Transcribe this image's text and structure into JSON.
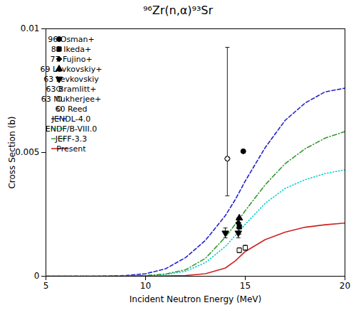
{
  "chart_data": {
    "type": "scatter",
    "title": "⁹⁶Zr(n,α)⁹³Sr",
    "xlabel": "Incident Neutron Energy (MeV)",
    "ylabel": "Cross Section (b)",
    "xlim": [
      5,
      20
    ],
    "ylim": [
      0,
      0.01
    ],
    "xticks": [
      5,
      10,
      15,
      20
    ],
    "yticks": [
      0,
      0.005,
      0.01
    ],
    "grid": false,
    "legend": "upper left",
    "series": [
      {
        "name": "96 Osman+",
        "type": "scatter",
        "marker": "circle",
        "color": "black",
        "x": [
          14.9
        ],
        "values": [
          0.00505
        ],
        "yerr_lo": [
          0.0
        ],
        "yerr_hi": [
          0.0
        ]
      },
      {
        "name": "88 Ikeda+",
        "type": "scatter",
        "marker": "square",
        "color": "black",
        "x": [
          14.7
        ],
        "values": [
          0.002
        ],
        "yerr_lo": [
          0.0003
        ],
        "yerr_hi": [
          0.0003
        ]
      },
      {
        "name": "77 Fujino+",
        "type": "scatter",
        "marker": "diamond",
        "color": "black",
        "x": [
          14.65
        ],
        "values": [
          0.00215
        ],
        "yerr_lo": [
          0.0002
        ],
        "yerr_hi": [
          0.0002
        ]
      },
      {
        "name": "69 Levkovskiy+",
        "type": "scatter",
        "marker": "triangle-up",
        "color": "black",
        "x": [
          14.7
        ],
        "values": [
          0.00235
        ],
        "yerr_lo": [
          0.0
        ],
        "yerr_hi": [
          0.0
        ]
      },
      {
        "name": "63 Levkovskiy",
        "type": "scatter",
        "marker": "triangle-down",
        "color": "black",
        "x": [
          14.0,
          14.65
        ],
        "values": [
          0.00175,
          0.00175
        ],
        "yerr_lo": [
          0.0002,
          0.0002
        ],
        "yerr_hi": [
          0.0002,
          0.0002
        ]
      },
      {
        "name": "63 Bramlitt+",
        "type": "scatter",
        "marker": "circle",
        "color": "white",
        "x": [
          14.1
        ],
        "values": [
          0.00475
        ],
        "yerr_lo": [
          0.0015
        ],
        "yerr_hi": [
          0.0045
        ]
      },
      {
        "name": "63 Mukherjee+",
        "type": "scatter",
        "marker": "square",
        "color": "white",
        "x": [
          14.7,
          15.0
        ],
        "values": [
          0.00105,
          0.00115
        ],
        "yerr_lo": [
          0.0001,
          0.0001
        ],
        "yerr_hi": [
          0.0001,
          0.0001
        ]
      },
      {
        "name": "60 Reed",
        "type": "scatter",
        "marker": "diamond",
        "color": "white",
        "x": [
          14.1
        ],
        "values": [
          0.00475
        ],
        "yerr_lo": [
          0.0
        ],
        "yerr_hi": [
          0.0
        ]
      },
      {
        "name": "JENDL-4.0",
        "type": "line",
        "color": "#2222cc",
        "line_style": "dashed",
        "x": [
          5,
          7,
          8,
          9,
          10,
          11,
          12,
          13,
          14,
          14.5,
          15,
          16,
          17,
          18,
          19,
          20
        ],
        "values": [
          0.0,
          1e-06,
          3e-06,
          3e-05,
          0.0001,
          0.0003,
          0.00075,
          0.00145,
          0.00245,
          0.0031,
          0.00385,
          0.0052,
          0.0063,
          0.007,
          0.00745,
          0.0076
        ]
      },
      {
        "name": "ENDF/B-VIII.0",
        "type": "line",
        "color": "#00cccc",
        "line_style": "dotted",
        "x": [
          5,
          8,
          9,
          10,
          11,
          12,
          13,
          14,
          14.5,
          15,
          16,
          17,
          18,
          19,
          20
        ],
        "values": [
          0.0,
          1e-06,
          5e-06,
          2e-05,
          7e-05,
          0.0002,
          0.00055,
          0.0012,
          0.00165,
          0.0021,
          0.00295,
          0.00355,
          0.0039,
          0.00415,
          0.0043
        ]
      },
      {
        "name": "JEFF-3.3",
        "type": "line",
        "color": "#339933",
        "line_style": "dashdot",
        "x": [
          5,
          8,
          9,
          10,
          11,
          12,
          13,
          14,
          14.5,
          15,
          16,
          17,
          18,
          19,
          20
        ],
        "values": [
          0.0,
          1e-06,
          8e-06,
          3e-05,
          9e-05,
          0.00026,
          0.00072,
          0.00158,
          0.0021,
          0.00265,
          0.0037,
          0.00455,
          0.00515,
          0.00558,
          0.00585
        ]
      },
      {
        "name": "Present",
        "type": "line",
        "color": "#cc2222",
        "line_style": "solid",
        "x": [
          5,
          9,
          10,
          11,
          12,
          13,
          14,
          14.5,
          15,
          16,
          17,
          18,
          19,
          20
        ],
        "values": [
          0.0,
          1e-06,
          5e-06,
          1e-05,
          3e-05,
          0.0001,
          0.00033,
          0.00062,
          0.001,
          0.00148,
          0.00178,
          0.00198,
          0.00208,
          0.00215
        ]
      }
    ]
  }
}
